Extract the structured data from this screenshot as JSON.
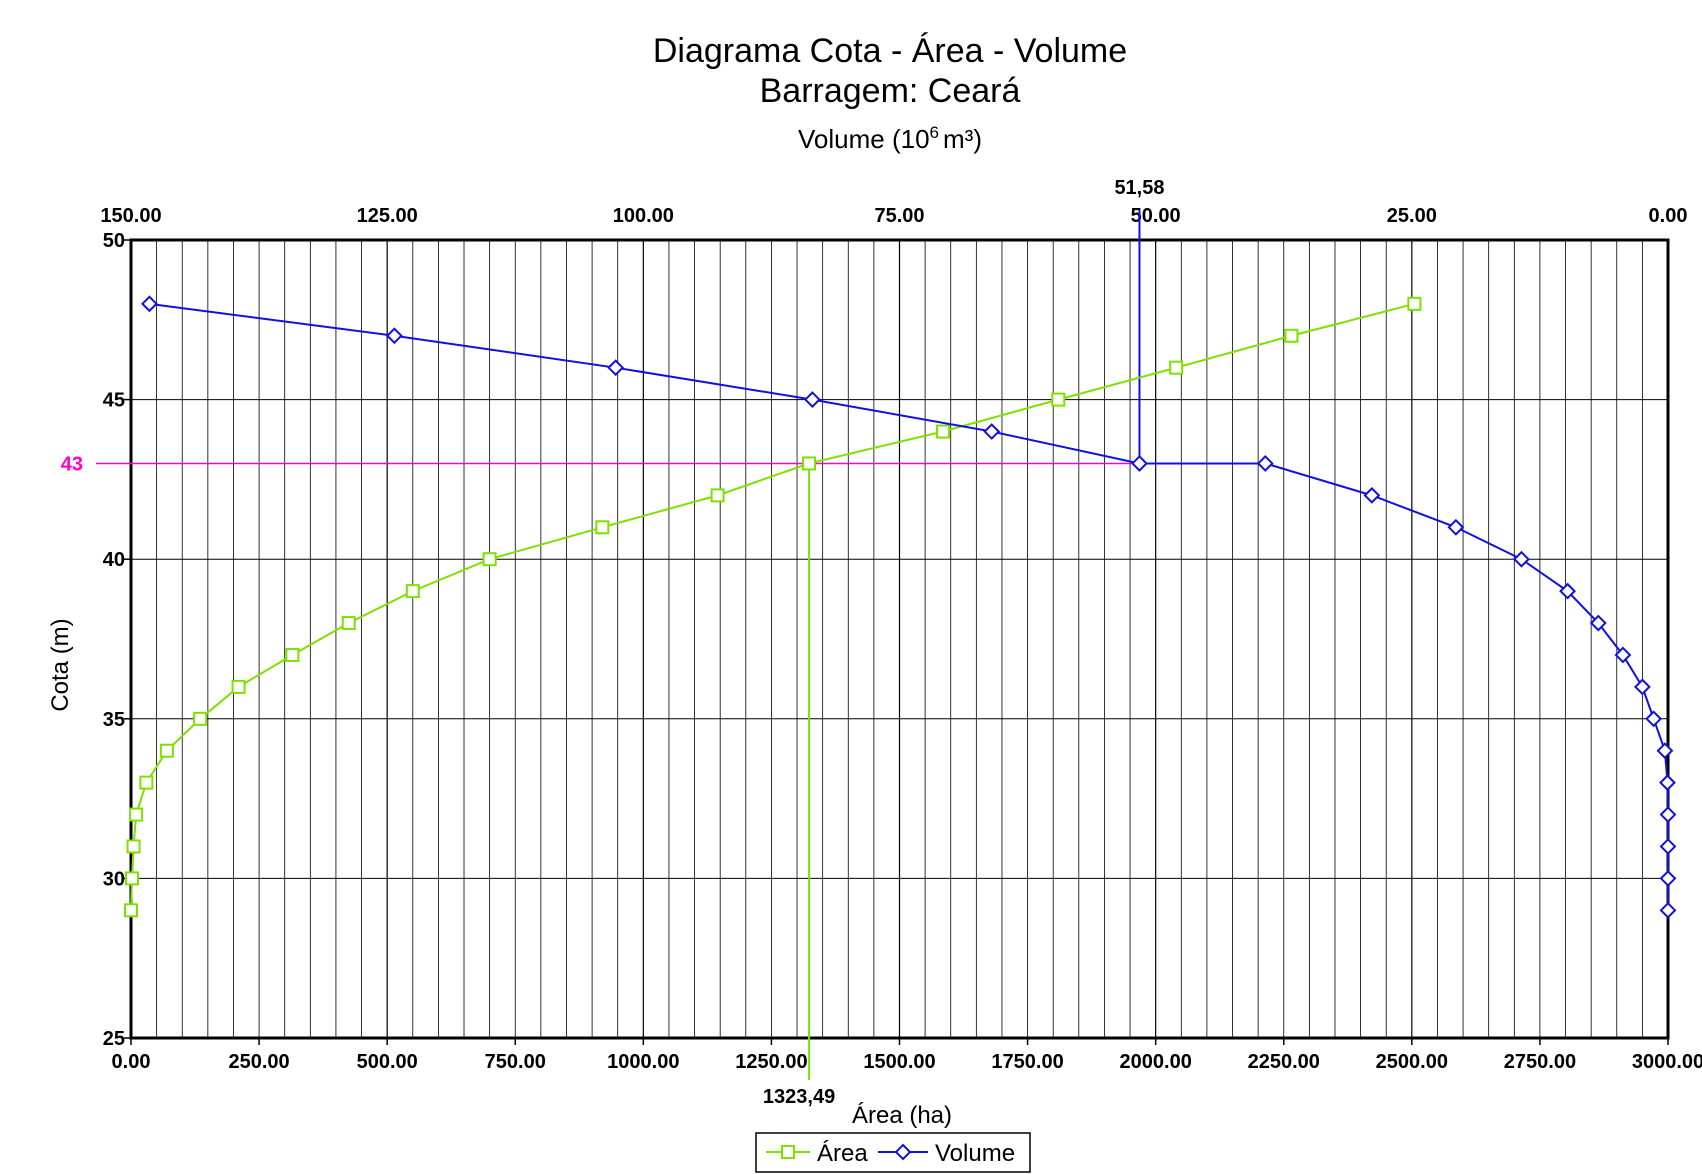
{
  "chart_data": {
    "type": "line",
    "title": "Diagrama Cota - Área - Volume",
    "subtitle": "Barragem: Ceará",
    "top_axis_label": "Volume (10",
    "top_axis_label_sup": "6",
    "top_axis_label_unit": "m³)",
    "xlabel": "Área (ha)",
    "ylabel": "Cota (m)",
    "x_area_ticks": [
      "0.00",
      "250.00",
      "500.00",
      "750.00",
      "1000.00",
      "1250.00",
      "1500.00",
      "1750.00",
      "2000.00",
      "2250.00",
      "2500.00",
      "2750.00",
      "3000.00"
    ],
    "x_volume_ticks": [
      "150.00",
      "125.00",
      "100.00",
      "75.00",
      "50.00",
      "25.00",
      "0.00"
    ],
    "y_ticks": [
      "25",
      "30",
      "35",
      "40",
      "45",
      "50"
    ],
    "xlim_area": [
      0,
      3000
    ],
    "xlim_volume_reversed": [
      150,
      0
    ],
    "ylim": [
      25,
      50
    ],
    "grid": true,
    "legend_position": "bottom",
    "series": [
      {
        "name": "Área",
        "color": "#7fe000",
        "marker": "square",
        "x": [
          0,
          2,
          5,
          10,
          30,
          70,
          135,
          210,
          315,
          425,
          550,
          700,
          920,
          1145,
          1323.49,
          1585,
          1810,
          2040,
          2265,
          2505
        ],
        "y": [
          29,
          30,
          31,
          32,
          33,
          34,
          35,
          36,
          37,
          38,
          39,
          40,
          41,
          42,
          43,
          44,
          45,
          46,
          47,
          48
        ]
      },
      {
        "name": "Volume",
        "color": "#1010e0",
        "marker": "diamond",
        "x": [
          0,
          0,
          0,
          0,
          0.05,
          0.3,
          1.4,
          2.5,
          4.4,
          6.8,
          9.8,
          14.3,
          20.7,
          28.9,
          39.3,
          51.58,
          66.0,
          83.5,
          102.7,
          124.3,
          148.2
        ],
        "y": [
          29,
          30,
          31,
          32,
          33,
          34,
          35,
          36,
          37,
          38,
          39,
          40,
          41,
          42,
          43,
          43,
          44,
          45,
          46,
          47,
          48
        ]
      }
    ],
    "annotations": {
      "cota_value": "43",
      "cota_color": "#ff00cc",
      "area_value": "1323,49",
      "volume_value": "51,58"
    }
  }
}
